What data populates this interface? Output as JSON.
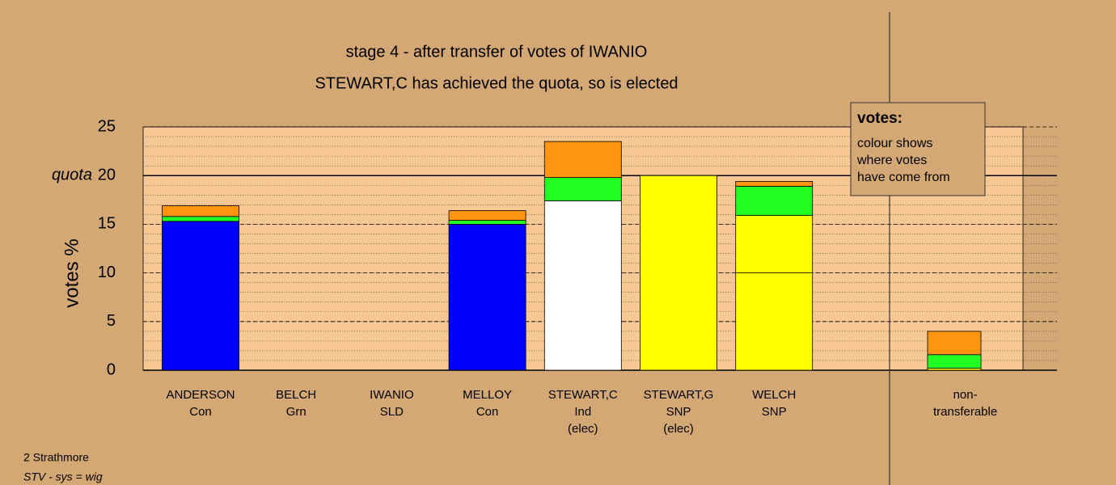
{
  "chart_data": {
    "type": "bar",
    "title": "stage 4 - after transfer of votes of IWANIO",
    "subtitle": "STEWART,C has achieved the quota, so is elected",
    "y_label": "votes %",
    "categories": [
      [
        "ANDERSON",
        "Con"
      ],
      [
        "BELCH",
        "Grn"
      ],
      [
        "IWANIO",
        "SLD"
      ],
      [
        "MELLOY",
        "Con"
      ],
      [
        "STEWART,C",
        "Ind",
        "(elec)"
      ],
      [
        "STEWART,G",
        "SNP",
        "(elec)"
      ],
      [
        "WELCH",
        "SNP"
      ],
      null,
      [
        "non-",
        "transferable"
      ]
    ],
    "series": [
      {
        "color": "#0000ff",
        "values": [
          15.3,
          0,
          0,
          15.0,
          0,
          0,
          0,
          null,
          0
        ]
      },
      {
        "color": "#ffffff",
        "values": [
          0,
          0,
          0,
          0,
          17.4,
          0,
          0,
          null,
          0
        ]
      },
      {
        "color": "#ffff00",
        "values": [
          0,
          0,
          0,
          0,
          0,
          20.0,
          10.0,
          null,
          0.2
        ]
      },
      {
        "color": "#ffff00",
        "values": [
          0,
          0,
          0,
          0,
          0,
          0,
          5.9,
          null,
          0
        ]
      },
      {
        "color": "#22ff22",
        "values": [
          0.5,
          0,
          0,
          0.4,
          2.4,
          0,
          3.0,
          null,
          1.4
        ]
      },
      {
        "color": "#ff9410",
        "values": [
          1.1,
          0,
          0,
          1.0,
          3.7,
          0,
          0.5,
          null,
          2.4
        ]
      }
    ],
    "ylim": [
      0,
      25
    ],
    "yticks": [
      0,
      5,
      10,
      15,
      20,
      25
    ],
    "quota": {
      "value": 20,
      "label": "quota"
    },
    "note_title": "votes:",
    "note": [
      "colour shows",
      "where votes",
      "have come from"
    ],
    "footer": [
      "2 Strathmore",
      "STV - sys = wig"
    ]
  }
}
